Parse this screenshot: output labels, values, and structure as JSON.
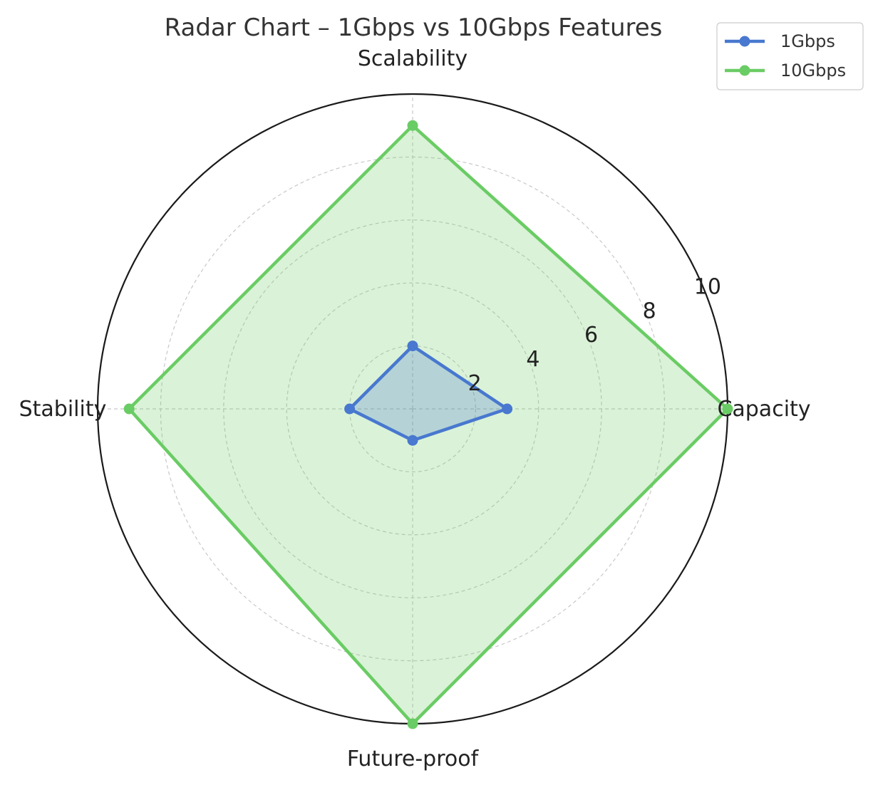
{
  "chart_data": {
    "type": "radar",
    "title": "Radar Chart – 1Gbps vs 10Gbps Features",
    "categories": [
      "Capacity",
      "Scalability",
      "Stability",
      "Future-proof"
    ],
    "rlim": [
      0,
      10
    ],
    "rticks": [
      2,
      4,
      6,
      8,
      10
    ],
    "grid": true,
    "legend_position": "top-right",
    "series": [
      {
        "name": "1Gbps",
        "values": [
          3,
          2,
          2,
          1
        ],
        "color": "#4878cf"
      },
      {
        "name": "10Gbps",
        "values": [
          10,
          9,
          9,
          10
        ],
        "color": "#6acc64"
      }
    ]
  }
}
